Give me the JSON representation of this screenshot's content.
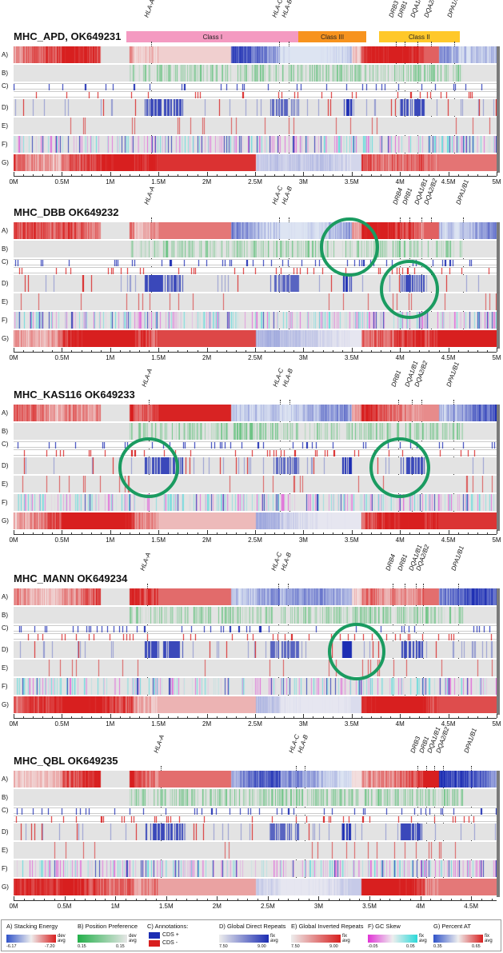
{
  "row_labels": [
    "A)",
    "B)",
    "C)",
    "D)",
    "E)",
    "F)",
    "G)"
  ],
  "axis_labels": [
    "0M",
    "0.5M",
    "1M",
    "1.5M",
    "2M",
    "2.5M",
    "3M",
    "3.5M",
    "4M",
    "4.5M",
    "5M"
  ],
  "panels": [
    {
      "title": "MHC_APD, OK649231",
      "axis_max": 5.0,
      "classes": [
        {
          "label": "Class I",
          "start": 1.17,
          "end": 2.95,
          "color": "#f49ac1"
        },
        {
          "label": "Class III",
          "start": 2.95,
          "end": 3.65,
          "color": "#f7931e"
        },
        {
          "label": "Class II",
          "start": 3.78,
          "end": 4.62,
          "color": "#ffc82a"
        }
      ],
      "genes": [
        {
          "label": "HLA-A",
          "pos": 1.42
        },
        {
          "label": "HLA-C",
          "pos": 2.75
        },
        {
          "label": "HLA-B",
          "pos": 2.85
        },
        {
          "label": "DRB3",
          "pos": 3.96
        },
        {
          "label": "DRB1",
          "pos": 4.05
        },
        {
          "label": "DQA1/B1",
          "pos": 4.18
        },
        {
          "label": "DQA2/B2",
          "pos": 4.32
        },
        {
          "label": "DPA1/B2",
          "pos": 4.56
        }
      ],
      "circles": []
    },
    {
      "title": "MHC_DBB OK649232",
      "axis_max": 5.0,
      "classes": [],
      "genes": [
        {
          "label": "HLA-A",
          "pos": 1.42
        },
        {
          "label": "HLA-C",
          "pos": 2.75
        },
        {
          "label": "HLA-B",
          "pos": 2.85
        },
        {
          "label": "DRB4",
          "pos": 4.0
        },
        {
          "label": "DRB1",
          "pos": 4.1
        },
        {
          "label": "DQA1/B1",
          "pos": 4.22
        },
        {
          "label": "DQA2/B2",
          "pos": 4.32
        },
        {
          "label": "DPA1/B1",
          "pos": 4.65
        }
      ],
      "circles": [
        {
          "pos": 3.48,
          "row": 0.9,
          "size": 74
        },
        {
          "pos": 4.1,
          "row": 3.2,
          "size": 74
        }
      ]
    },
    {
      "title": "MHC_KAS116 OK649233",
      "axis_max": 5.0,
      "classes": [],
      "genes": [
        {
          "label": "HLA-A",
          "pos": 1.4
        },
        {
          "label": "HLA-C",
          "pos": 2.76
        },
        {
          "label": "HLA-B",
          "pos": 2.86
        },
        {
          "label": "DRB1",
          "pos": 3.98
        },
        {
          "label": "DQA1/B1",
          "pos": 4.12
        },
        {
          "label": "DQA2/B2",
          "pos": 4.22
        },
        {
          "label": "DPA1/B1",
          "pos": 4.55
        }
      ],
      "circles": [
        {
          "pos": 1.4,
          "row": 3.0,
          "size": 76
        },
        {
          "pos": 4.0,
          "row": 3.0,
          "size": 76
        }
      ]
    },
    {
      "title": "MHC_MANN OK649234",
      "axis_max": 5.0,
      "classes": [],
      "genes": [
        {
          "label": "HLA-A",
          "pos": 1.38
        },
        {
          "label": "HLA-C",
          "pos": 2.74
        },
        {
          "label": "HLA-B",
          "pos": 2.84
        },
        {
          "label": "DRB4",
          "pos": 3.92
        },
        {
          "label": "DRB1",
          "pos": 4.05
        },
        {
          "label": "DQA1/B1",
          "pos": 4.16
        },
        {
          "label": "DQA2/B2",
          "pos": 4.24
        },
        {
          "label": "DPA1/B1",
          "pos": 4.6
        }
      ],
      "circles": [
        {
          "pos": 3.55,
          "row": 3.0,
          "size": 72
        }
      ]
    },
    {
      "title": "MHC_QBL OK649235",
      "axis_max": 4.75,
      "classes": [],
      "genes": [
        {
          "label": "HLA-A",
          "pos": 1.45
        },
        {
          "label": "HLA-C",
          "pos": 2.78
        },
        {
          "label": "HLA-B",
          "pos": 2.86
        },
        {
          "label": "DRB3",
          "pos": 3.97
        },
        {
          "label": "DRB1",
          "pos": 4.06
        },
        {
          "label": "DQA1/B1",
          "pos": 4.14
        },
        {
          "label": "DQA2/B2",
          "pos": 4.22
        },
        {
          "label": "DPA1/B1",
          "pos": 4.5
        }
      ],
      "circles": []
    }
  ],
  "legend": [
    {
      "title": "A) Stacking Energy",
      "min": "-6.17",
      "max": "-7.20",
      "side": "dev\navg",
      "from": "#2f52c9",
      "to": "#d81f1f"
    },
    {
      "title": "B) Position Preference",
      "min": "0.15",
      "max": "0.15",
      "side": "dev\navg",
      "from": "#23b04a",
      "to": "#e6e6e6"
    },
    {
      "title": "C) Annotations:",
      "cds_plus": "CDS +",
      "cds_minus": "CDS -"
    },
    {
      "title": "D) Global Direct Repeats",
      "min": "7.50",
      "max": "9.00",
      "side": "fix\navg",
      "from": "#ededed",
      "to": "#1c2db3"
    },
    {
      "title": "E) Global Inverted Repeats",
      "min": "7.50",
      "max": "9.00",
      "side": "fix\navg",
      "from": "#ededed",
      "to": "#d81f1f"
    },
    {
      "title": "F) GC Skew",
      "min": "-0.05",
      "max": "0.05",
      "side": "fix\navg",
      "from": "#e034d5",
      "to": "#2bd9d9"
    },
    {
      "title": "G) Percent AT",
      "min": "0.35",
      "max": "0.65",
      "side": "fix\navg",
      "from": "#2f52c9",
      "to": "#d81f1f"
    }
  ],
  "colors": {
    "blue": "#1c2db3",
    "red": "#d81f1f",
    "green": "#23b04a",
    "teal": "#1a9b60"
  }
}
